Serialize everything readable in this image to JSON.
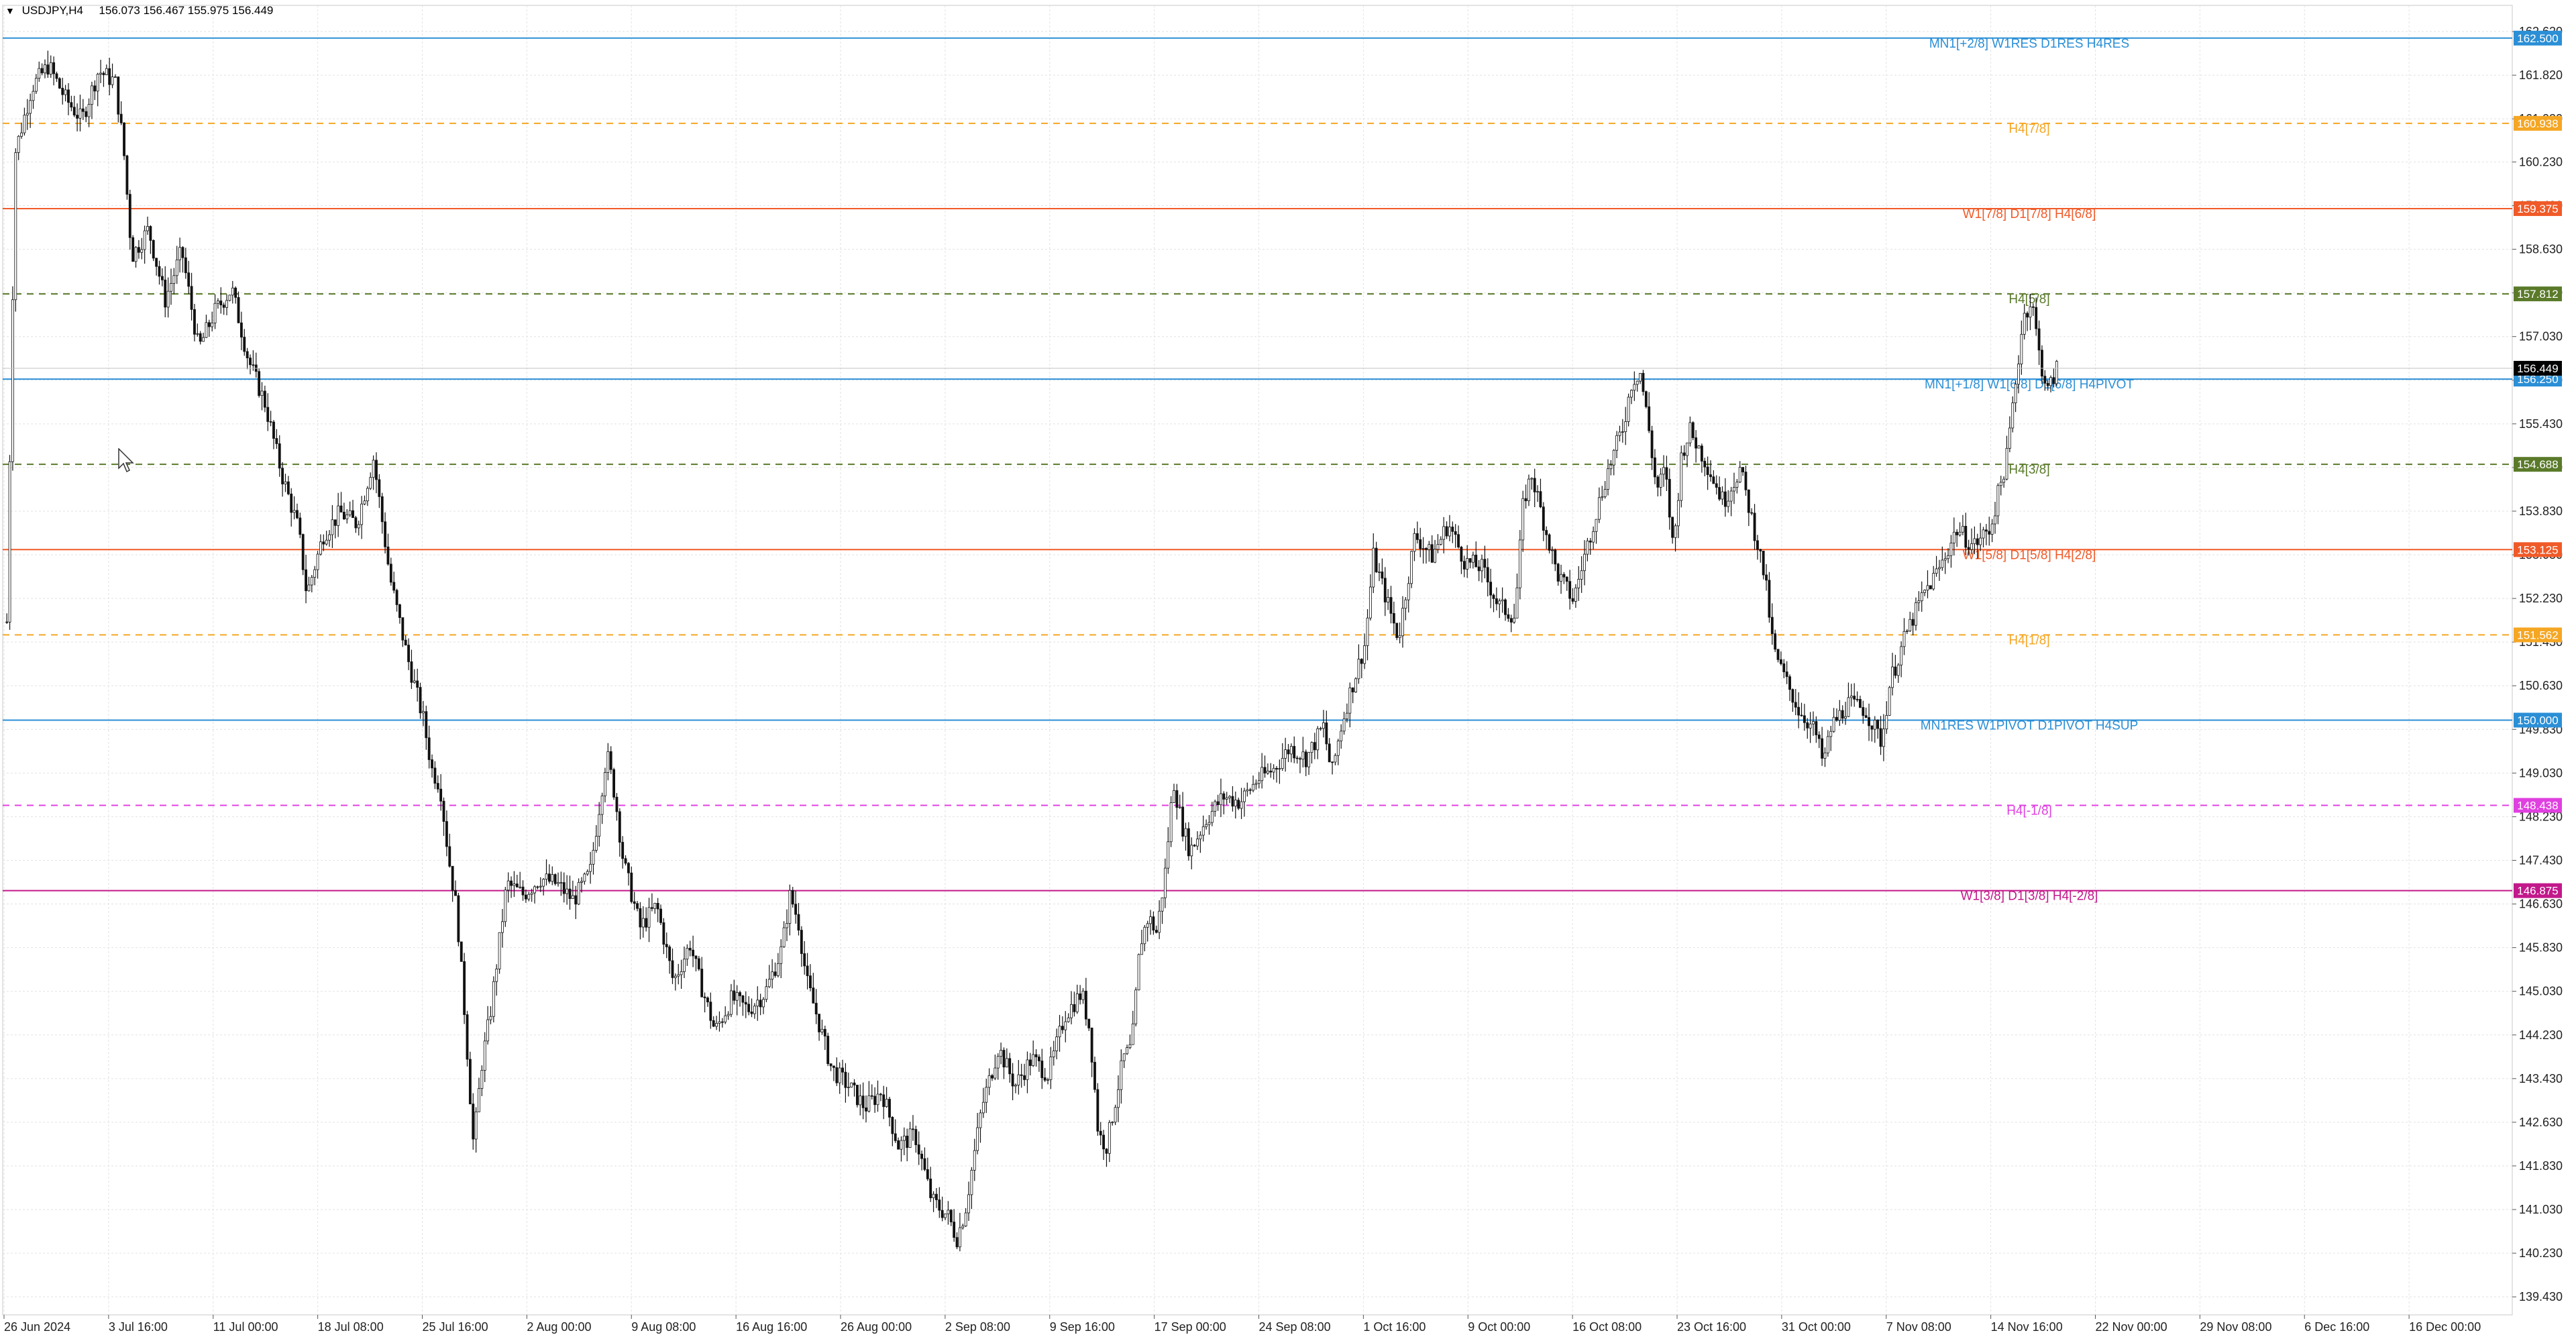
{
  "header": {
    "symbol_tf": "USDJPY,H4",
    "ohlc": "156.073 156.467 155.975 156.449"
  },
  "chart_data": {
    "type": "candlestick",
    "symbol": "USDJPY",
    "timeframe": "H4",
    "ylim": [
      139.1,
      163.1
    ],
    "price_ticks": [
      "162.620",
      "161.820",
      "161.020",
      "160.230",
      "159.430",
      "158.630",
      "157.830",
      "157.030",
      "156.230",
      "155.430",
      "154.630",
      "153.830",
      "153.030",
      "152.230",
      "151.430",
      "150.630",
      "149.830",
      "149.030",
      "148.230",
      "147.430",
      "146.630",
      "145.830",
      "145.030",
      "144.230",
      "143.430",
      "142.630",
      "141.830",
      "141.030",
      "140.230",
      "139.430"
    ],
    "time_labels": [
      "26 Jun 2024",
      "3 Jul 16:00",
      "11 Jul 00:00",
      "18 Jul 08:00",
      "25 Jul 16:00",
      "2 Aug 00:00",
      "9 Aug 08:00",
      "16 Aug 16:00",
      "26 Aug 00:00",
      "2 Sep 08:00",
      "9 Sep 16:00",
      "17 Sep 00:00",
      "24 Sep 08:00",
      "1 Oct 16:00",
      "9 Oct 00:00",
      "16 Oct 08:00",
      "23 Oct 16:00",
      "31 Oct 00:00",
      "7 Nov 08:00",
      "14 Nov 16:00",
      "22 Nov 00:00",
      "29 Nov 08:00",
      "6 Dec 16:00",
      "16 Dec 00:00"
    ],
    "grid": true,
    "current_price": {
      "value": 156.449,
      "label": "156.449",
      "color": "#000000"
    },
    "levels": [
      {
        "price": 162.5,
        "label": "162.500",
        "text": "MN1[+2/8] W1RES D1RES H4RES",
        "color": "#2b8fd6",
        "style": "solid"
      },
      {
        "price": 160.938,
        "label": "160.938",
        "text": "H4[7/8]",
        "color": "#f5a623",
        "style": "dashed"
      },
      {
        "price": 159.375,
        "label": "159.375",
        "text": "W1[7/8] D1[7/8] H4[6/8]",
        "color": "#f05a28",
        "style": "solid"
      },
      {
        "price": 157.812,
        "label": "157.812",
        "text": "H4[5/8]",
        "color": "#5a7a2a",
        "style": "dashed"
      },
      {
        "price": 156.25,
        "label": "156.250",
        "text": "MN1[+1/8] W1[6/8] D1[6/8] H4PIVOT",
        "color": "#2b8fd6",
        "style": "solid"
      },
      {
        "price": 154.688,
        "label": "154.688",
        "text": "H4[3/8]",
        "color": "#5a7a2a",
        "style": "dashed"
      },
      {
        "price": 153.125,
        "label": "153.125",
        "text": "W1[5/8] D1[5/8] H4[2/8]",
        "color": "#f05a28",
        "style": "solid"
      },
      {
        "price": 151.562,
        "label": "151.562",
        "text": "H4[1/8]",
        "color": "#f5a623",
        "style": "dashed"
      },
      {
        "price": 150.0,
        "label": "150.000",
        "text": "MN1RES W1PIVOT D1PIVOT H4SUP",
        "color": "#2b8fd6",
        "style": "solid"
      },
      {
        "price": 148.438,
        "label": "148.438",
        "text": "H4[-1/8]",
        "color": "#e040e0",
        "style": "dashed"
      },
      {
        "price": 146.875,
        "label": "146.875",
        "text": "W1[3/8] D1[3/8] H4[-2/8]",
        "color": "#c2188b",
        "style": "solid"
      }
    ],
    "close_path": [
      [
        0,
        151.8
      ],
      [
        1,
        160.4
      ],
      [
        3,
        161.6
      ],
      [
        5,
        162.0
      ],
      [
        7,
        161.4
      ],
      [
        9,
        161.0
      ],
      [
        11,
        161.9
      ],
      [
        13,
        161.7
      ],
      [
        14,
        160.5
      ],
      [
        15,
        158.5
      ],
      [
        17,
        159.0
      ],
      [
        19,
        157.7
      ],
      [
        21,
        158.6
      ],
      [
        23,
        156.8
      ],
      [
        25,
        157.5
      ],
      [
        27,
        157.9
      ],
      [
        29,
        156.6
      ],
      [
        31,
        155.8
      ],
      [
        33,
        154.5
      ],
      [
        35,
        153.5
      ],
      [
        36,
        152.3
      ],
      [
        38,
        153.4
      ],
      [
        40,
        153.8
      ],
      [
        42,
        153.6
      ],
      [
        44,
        154.8
      ],
      [
        46,
        152.6
      ],
      [
        48,
        151.2
      ],
      [
        50,
        150.0
      ],
      [
        51,
        149.1
      ],
      [
        52,
        148.8
      ],
      [
        53,
        147.5
      ],
      [
        54,
        146.5
      ],
      [
        55,
        144.5
      ],
      [
        56,
        142.2
      ],
      [
        57,
        143.7
      ],
      [
        58,
        144.6
      ],
      [
        60,
        147.0
      ],
      [
        62,
        146.8
      ],
      [
        64,
        147.1
      ],
      [
        66,
        147.0
      ],
      [
        68,
        146.7
      ],
      [
        70,
        147.2
      ],
      [
        72,
        149.4
      ],
      [
        73,
        148.6
      ],
      [
        74,
        147.4
      ],
      [
        76,
        146.2
      ],
      [
        78,
        146.6
      ],
      [
        80,
        145.2
      ],
      [
        82,
        145.9
      ],
      [
        83,
        145.3
      ],
      [
        85,
        144.3
      ],
      [
        87,
        144.9
      ],
      [
        89,
        144.7
      ],
      [
        91,
        145.0
      ],
      [
        93,
        145.8
      ],
      [
        94,
        146.8
      ],
      [
        95,
        146.3
      ],
      [
        96,
        145.2
      ],
      [
        97,
        144.7
      ],
      [
        99,
        143.6
      ],
      [
        101,
        143.3
      ],
      [
        103,
        142.9
      ],
      [
        105,
        143.2
      ],
      [
        107,
        142.2
      ],
      [
        109,
        142.4
      ],
      [
        111,
        141.2
      ],
      [
        113,
        140.9
      ],
      [
        114,
        140.5
      ],
      [
        115,
        141.0
      ],
      [
        117,
        142.9
      ],
      [
        119,
        144.0
      ],
      [
        121,
        143.3
      ],
      [
        123,
        143.8
      ],
      [
        125,
        143.5
      ],
      [
        127,
        144.6
      ],
      [
        129,
        145.0
      ],
      [
        130,
        144.3
      ],
      [
        131,
        142.4
      ],
      [
        132,
        142.2
      ],
      [
        134,
        143.8
      ],
      [
        135,
        144.0
      ],
      [
        136,
        145.9
      ],
      [
        137,
        146.4
      ],
      [
        138,
        146.1
      ],
      [
        139,
        147.2
      ],
      [
        140,
        148.9
      ],
      [
        141,
        148.1
      ],
      [
        142,
        147.6
      ],
      [
        144,
        148.2
      ],
      [
        146,
        148.6
      ],
      [
        148,
        148.5
      ],
      [
        150,
        148.9
      ],
      [
        152,
        149.1
      ],
      [
        154,
        149.5
      ],
      [
        156,
        149.3
      ],
      [
        158,
        149.9
      ],
      [
        159,
        149.0
      ],
      [
        160,
        149.8
      ],
      [
        161,
        150.4
      ],
      [
        162,
        150.9
      ],
      [
        163,
        151.4
      ],
      [
        164,
        153.0
      ],
      [
        166,
        152.0
      ],
      [
        167,
        151.5
      ],
      [
        169,
        153.4
      ],
      [
        171,
        153.0
      ],
      [
        173,
        153.6
      ],
      [
        175,
        152.9
      ],
      [
        177,
        152.8
      ],
      [
        179,
        152.1
      ],
      [
        181,
        151.9
      ],
      [
        182,
        154.0
      ],
      [
        183,
        154.5
      ],
      [
        185,
        153.3
      ],
      [
        186,
        152.7
      ],
      [
        188,
        152.2
      ],
      [
        190,
        153.4
      ],
      [
        192,
        154.5
      ],
      [
        194,
        155.4
      ],
      [
        195,
        156.2
      ],
      [
        196,
        156.4
      ],
      [
        197,
        155.4
      ],
      [
        198,
        154.2
      ],
      [
        199,
        154.6
      ],
      [
        200,
        153.1
      ],
      [
        201,
        154.9
      ],
      [
        202,
        155.3
      ],
      [
        204,
        154.7
      ],
      [
        206,
        154.0
      ],
      [
        208,
        154.6
      ],
      [
        210,
        153.3
      ],
      [
        211,
        152.6
      ],
      [
        212,
        151.3
      ],
      [
        213,
        150.9
      ],
      [
        215,
        150.2
      ],
      [
        217,
        149.8
      ],
      [
        218,
        149.2
      ],
      [
        219,
        149.9
      ],
      [
        221,
        150.3
      ],
      [
        223,
        150.2
      ],
      [
        225,
        149.6
      ],
      [
        226,
        150.7
      ],
      [
        228,
        151.6
      ],
      [
        230,
        152.3
      ],
      [
        232,
        152.8
      ],
      [
        234,
        153.5
      ],
      [
        236,
        153.2
      ],
      [
        238,
        153.5
      ],
      [
        240,
        154.8
      ],
      [
        242,
        157.4
      ],
      [
        243,
        157.7
      ],
      [
        244,
        156.6
      ],
      [
        245,
        156.0
      ],
      [
        246,
        156.45
      ]
    ]
  }
}
